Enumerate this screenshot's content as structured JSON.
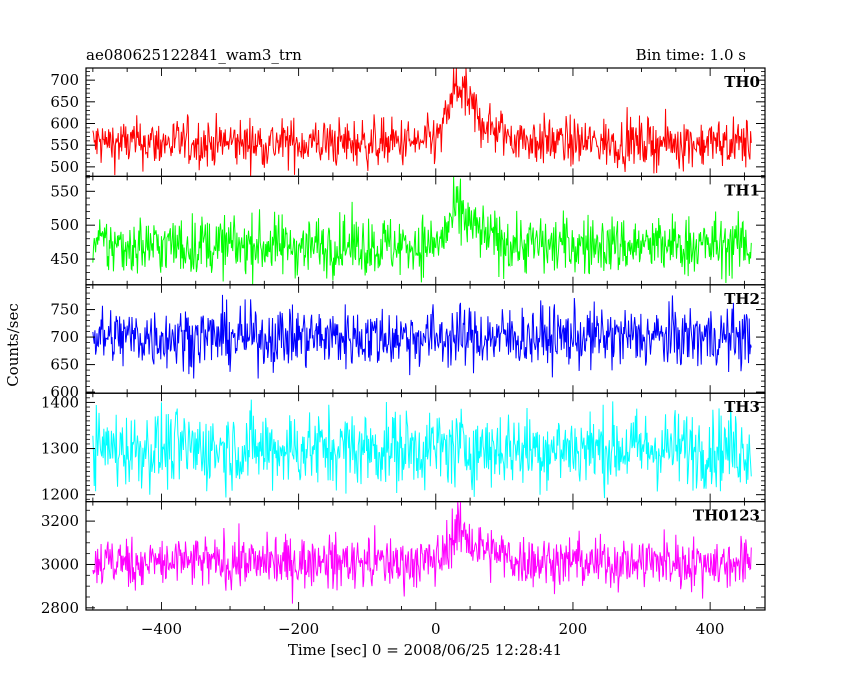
{
  "chart_data": {
    "type": "line",
    "title": "ae080625122841_wam3_trn",
    "subtitle": "Bin time: 1.0 s",
    "xlabel": "Time [sec] 0 = 2008/06/25 12:28:41",
    "ylabel": "Counts/sec",
    "xlim": [
      -510,
      480
    ],
    "x_ticks": [
      -400,
      -200,
      0,
      200,
      400
    ],
    "grid": false,
    "panels": [
      {
        "name": "TH0",
        "color": "#ff0000",
        "ylim": [
          478,
          728
        ],
        "y_ticks": [
          500,
          550,
          600,
          650,
          700
        ],
        "baseline": 555,
        "noise": 28,
        "outlier_high": 640,
        "outlier_low": 478,
        "peak": {
          "x": 35,
          "height": 170,
          "rise": 15,
          "decay": 35
        }
      },
      {
        "name": "TH1",
        "color": "#00ff00",
        "ylim": [
          412,
          572
        ],
        "y_ticks": [
          450,
          500,
          550
        ],
        "baseline": 470,
        "noise": 22,
        "outlier_high": 565,
        "outlier_low": 412,
        "peak": {
          "x": 35,
          "height": 65,
          "rise": 15,
          "decay": 30
        }
      },
      {
        "name": "TH2",
        "color": "#0000ff",
        "ylim": [
          598,
          795
        ],
        "y_ticks": [
          600,
          650,
          700,
          750
        ],
        "baseline": 700,
        "noise": 28,
        "outlier_high": 795,
        "outlier_low": 598,
        "peak": null
      },
      {
        "name": "TH3",
        "color": "#00ffff",
        "ylim": [
          1185,
          1420
        ],
        "y_ticks": [
          1200,
          1300,
          1400
        ],
        "baseline": 1300,
        "noise": 42,
        "outlier_high": 1415,
        "outlier_low": 1185,
        "peak": null
      },
      {
        "name": "TH0123",
        "color": "#ff00ff",
        "ylim": [
          2790,
          3290
        ],
        "y_ticks": [
          2800,
          3000,
          3200
        ],
        "baseline": 3010,
        "noise": 60,
        "outlier_high": 3200,
        "outlier_low": 2800,
        "peak": {
          "x": 35,
          "height": 200,
          "rise": 15,
          "decay": 35
        }
      }
    ],
    "series_x_range": [
      -500,
      460
    ],
    "bin_time_s": 1.0
  }
}
